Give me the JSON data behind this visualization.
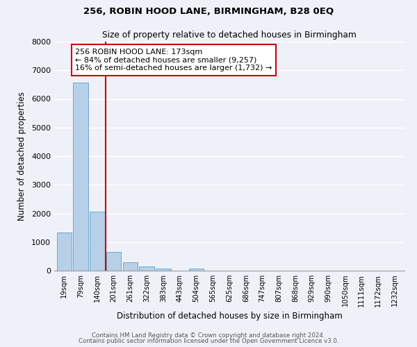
{
  "title": "256, ROBIN HOOD LANE, BIRMINGHAM, B28 0EQ",
  "subtitle": "Size of property relative to detached houses in Birmingham",
  "xlabel": "Distribution of detached houses by size in Birmingham",
  "ylabel": "Number of detached properties",
  "bar_labels": [
    "19sqm",
    "79sqm",
    "140sqm",
    "201sqm",
    "261sqm",
    "322sqm",
    "383sqm",
    "443sqm",
    "504sqm",
    "565sqm",
    "625sqm",
    "686sqm",
    "747sqm",
    "807sqm",
    "868sqm",
    "929sqm",
    "990sqm",
    "1050sqm",
    "1111sqm",
    "1172sqm",
    "1232sqm"
  ],
  "bar_values": [
    1330,
    6580,
    2070,
    650,
    295,
    145,
    75,
    0,
    75,
    0,
    0,
    0,
    0,
    0,
    0,
    0,
    0,
    0,
    0,
    0,
    0
  ],
  "bar_color": "#b8cfe8",
  "bar_edge_color": "#6aaad4",
  "background_color": "#eef2f8",
  "grid_color": "#ffffff",
  "ylim": [
    0,
    8000
  ],
  "yticks": [
    0,
    1000,
    2000,
    3000,
    4000,
    5000,
    6000,
    7000,
    8000
  ],
  "property_line_color": "#cc0000",
  "annotation_text": "256 ROBIN HOOD LANE: 173sqm\n← 84% of detached houses are smaller (9,257)\n16% of semi-detached houses are larger (1,732) →",
  "annotation_box_color": "#ffffff",
  "annotation_box_edge": "#cc0000",
  "footer_line1": "Contains HM Land Registry data © Crown copyright and database right 2024.",
  "footer_line2": "Contains public sector information licensed under the Open Government Licence v3.0."
}
